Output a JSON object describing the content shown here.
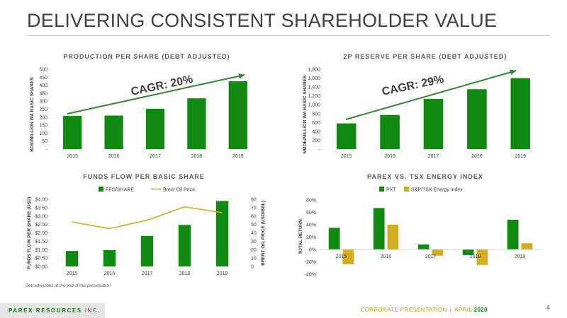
{
  "slide": {
    "title": "DELIVERING CONSISTENT SHAREHOLDER VALUE",
    "disclaimer": "See advisories at the end of this presentation",
    "footer": {
      "brand": "PAREX RESOURCES",
      "brand_suffix": "INC.",
      "section": "CORPORATE PRESENTATION",
      "separator": "|",
      "month": "APRIL",
      "year": "2020"
    },
    "page_number": "4"
  },
  "colors": {
    "green": "#118a11",
    "gold": "#d4ad1f",
    "arrow": "#2c8a2c"
  },
  "chart_data": [
    {
      "type": "bar",
      "title": "PRODUCTION PER SHARE (DEBT ADJUSTED)",
      "ylabel": "BOE/MILLION WA BASIC SHARES",
      "categories": [
        "2015",
        "2016",
        "2017",
        "2018",
        "2019"
      ],
      "values": [
        208,
        210,
        253,
        318,
        425
      ],
      "ylim": [
        0,
        500
      ],
      "yticks": [
        "-",
        "50",
        "100",
        "150",
        "200",
        "250",
        "300",
        "350",
        "400",
        "450",
        "500"
      ],
      "annotation": "CAGR: 20%",
      "trend_arrow": true
    },
    {
      "type": "bar",
      "title": "2P RESERVE PER SHARE (DEBT ADJUSTED)",
      "ylabel": "MBOE/MILLION WA BASIC SHARES",
      "categories": [
        "2015",
        "2016",
        "2017",
        "2018",
        "2019"
      ],
      "values": [
        580,
        770,
        1130,
        1350,
        1600
      ],
      "ylim": [
        0,
        1800
      ],
      "yticks": [
        "-",
        "200",
        "400",
        "600",
        "800",
        "1,000",
        "1,200",
        "1,400",
        "1,600",
        "1,800"
      ],
      "annotation": "CAGR: 29%",
      "trend_arrow": true
    },
    {
      "type": "bar",
      "title": "FUNDS FLOW PER BASIC SHARE",
      "ylabel": "FUNDS FLOW PER SHARE (USD)",
      "y2label": "BRENT OIL PRICE (USD/BBL)",
      "categories": [
        "2015",
        "2016",
        "2017",
        "2018",
        "2019"
      ],
      "series": [
        {
          "name": "FFO/SHARE",
          "kind": "bar",
          "values": [
            0.92,
            0.97,
            1.82,
            2.47,
            3.9
          ]
        },
        {
          "name": "Brent Oil Price",
          "kind": "line",
          "axis": "right",
          "values": [
            53,
            45,
            55,
            71,
            64
          ]
        }
      ],
      "ylim": [
        0,
        4
      ],
      "yticks": [
        "$0.00",
        "$0.50",
        "$1.00",
        "$1.50",
        "$2.00",
        "$2.50",
        "$3.00",
        "$3.50",
        "$4.00"
      ],
      "y2lim": [
        0,
        80
      ],
      "y2ticks": [
        "0",
        "10",
        "20",
        "30",
        "40",
        "50",
        "60",
        "70",
        "80"
      ],
      "legend": "top"
    },
    {
      "type": "bar",
      "title": "PAREX VS. TSX ENERGY INDEX",
      "ylabel": "TOTAL RETURN",
      "categories": [
        "2015",
        "2016",
        "2017",
        "2018",
        "2019"
      ],
      "series": [
        {
          "name": "PXT",
          "values": [
            35,
            67,
            8,
            -9,
            48
          ]
        },
        {
          "name": "S&P/TSX Energy Index",
          "values": [
            -24,
            40,
            -10,
            -25,
            10
          ]
        }
      ],
      "ylim": [
        -40,
        80
      ],
      "yticks": [
        "-40%",
        "-20%",
        "0%",
        "20%",
        "40%",
        "60%",
        "80%"
      ],
      "legend": "top"
    }
  ]
}
